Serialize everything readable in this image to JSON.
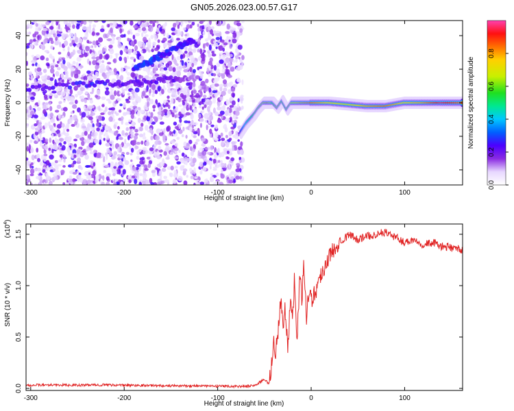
{
  "title": "GN05.2026.023.00.57.G17",
  "chart_data": [
    {
      "type": "heatmap",
      "xlabel": "Height of straight line (km)",
      "ylabel": "Frequency (Hz)",
      "xlim": [
        -305,
        162
      ],
      "ylim": [
        -49,
        49
      ],
      "xticks": [
        -300,
        -200,
        -100,
        0,
        100
      ],
      "yticks": [
        -40,
        -20,
        0,
        20,
        40
      ],
      "noise_region_x": [
        -305,
        -73
      ],
      "features": [
        {
          "kind": "noise_band",
          "x": [
            -305,
            -240,
            -190,
            -150,
            -120
          ],
          "y": [
            9,
            11,
            12,
            14,
            15
          ],
          "z": [
            0.2,
            0.25,
            0.2,
            0.2,
            0.1
          ]
        },
        {
          "kind": "noise_band",
          "x": [
            -190,
            -175,
            -160,
            -140,
            -125
          ],
          "y": [
            20,
            24,
            28,
            34,
            38
          ],
          "z": [
            0.25,
            0.3,
            0.25,
            0.25,
            0.2
          ]
        },
        {
          "kind": "ridge",
          "x": [
            -75,
            -68,
            -60,
            -55,
            -50,
            -45,
            -40,
            -35,
            -30,
            -25,
            -20,
            -10,
            0,
            20,
            40,
            60,
            80,
            100,
            120,
            140,
            162
          ],
          "y": [
            -18,
            -12,
            -7,
            -3,
            0,
            0,
            0,
            -3,
            1,
            -4,
            0,
            0,
            0,
            0,
            -1,
            -2,
            -2,
            0,
            0,
            0,
            0
          ],
          "z": [
            0.25,
            0.45,
            0.6,
            0.7,
            0.75,
            0.85,
            0.55,
            0.75,
            0.6,
            0.65,
            0.7,
            0.8,
            0.85,
            0.75,
            0.7,
            0.8,
            0.85,
            0.75,
            0.8,
            0.95,
            0.85
          ]
        }
      ]
    },
    {
      "type": "colorbar",
      "label": "Normalized spectral amplitude",
      "range": [
        0,
        1
      ],
      "ticks": [
        0.0,
        0.2,
        0.4,
        0.6,
        0.8
      ],
      "tick_labels": [
        "0.0",
        "0.2",
        "0.4",
        "0.6",
        "0.8"
      ]
    },
    {
      "type": "line",
      "xlabel": "Height of straight line (km)",
      "ylabel": "SNR (10 * v/v)",
      "scale_label": "(x10",
      "scale_exp": "4",
      "scale_close": ")",
      "xlim": [
        -305,
        162
      ],
      "ylim": [
        -0.02,
        1.6
      ],
      "xticks": [
        -300,
        -200,
        -100,
        0,
        100
      ],
      "yticks": [
        0.0,
        0.5,
        1.0,
        1.5
      ],
      "ytick_labels": [
        "0.0",
        "0.5",
        "1.0",
        "1.5"
      ],
      "series": [
        {
          "color": "#e02020",
          "x": [
            -305,
            -280,
            -250,
            -220,
            -200,
            -180,
            -150,
            -120,
            -100,
            -80,
            -70,
            -60,
            -55,
            -50,
            -45,
            -42,
            -40,
            -38,
            -35,
            -32,
            -30,
            -28,
            -25,
            -22,
            -20,
            -18,
            -15,
            -12,
            -10,
            -8,
            -5,
            -2,
            0,
            5,
            10,
            15,
            20,
            25,
            30,
            35,
            40,
            50,
            60,
            70,
            80,
            90,
            100,
            110,
            120,
            130,
            140,
            150,
            162
          ],
          "y": [
            0.03,
            0.035,
            0.03,
            0.035,
            0.03,
            0.03,
            0.025,
            0.025,
            0.02,
            0.02,
            0.02,
            0.03,
            0.06,
            0.09,
            0.04,
            0.25,
            0.45,
            0.35,
            0.6,
            0.9,
            0.55,
            0.75,
            0.4,
            0.9,
            0.65,
            1.05,
            0.5,
            1.1,
            0.85,
            1.25,
            0.7,
            1.0,
            0.85,
            0.95,
            1.1,
            1.2,
            1.3,
            1.35,
            1.45,
            1.45,
            1.5,
            1.45,
            1.48,
            1.5,
            1.52,
            1.47,
            1.42,
            1.45,
            1.4,
            1.42,
            1.38,
            1.37,
            1.35
          ]
        }
      ]
    }
  ]
}
